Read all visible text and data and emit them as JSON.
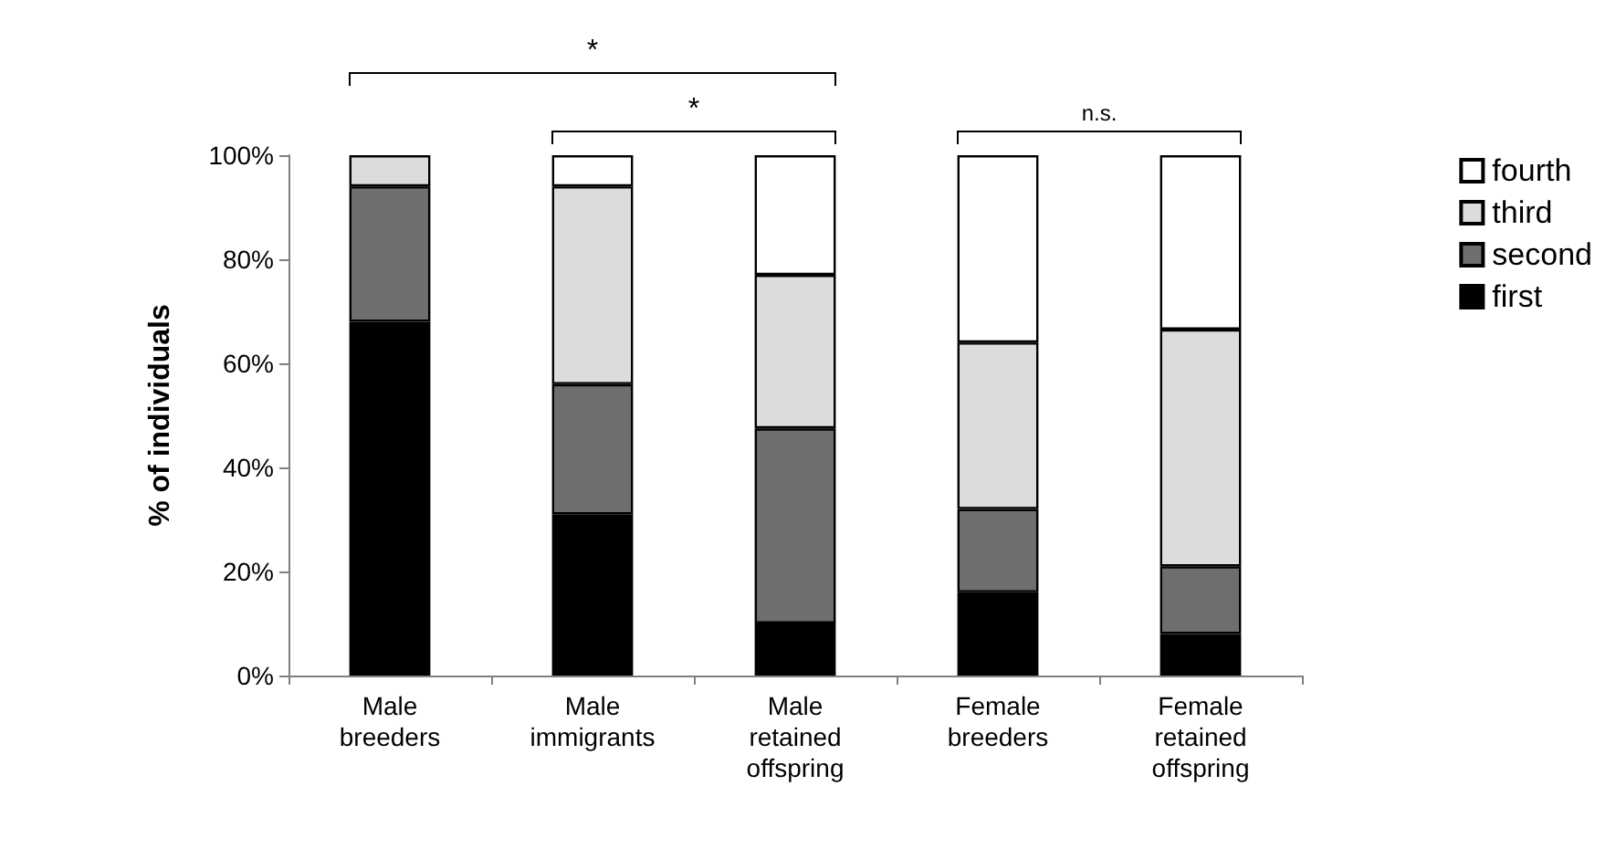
{
  "chart_data": {
    "type": "bar",
    "stacked": true,
    "ylabel": "% of individuals",
    "categories": [
      "Male\nbreeders",
      "Male\nimmigrants",
      "Male\nretained\noffspring",
      "Female\nbreeders",
      "Female\nretained\noffspring"
    ],
    "series": [
      {
        "name": "first",
        "color": "#000000",
        "values": [
          68,
          31,
          10,
          16,
          8
        ]
      },
      {
        "name": "second",
        "color": "#6e6e6e",
        "values": [
          26,
          25,
          37.5,
          16,
          13
        ]
      },
      {
        "name": "third",
        "color": "#dcdcdc",
        "values": [
          6,
          38,
          29.5,
          32,
          45.5
        ]
      },
      {
        "name": "fourth",
        "color": "#ffffff",
        "values": [
          null,
          6,
          23,
          36,
          33.5
        ]
      }
    ],
    "ylim": [
      0,
      100
    ],
    "yticks": [
      {
        "value": 0,
        "label": "0%"
      },
      {
        "value": 20,
        "label": "20%"
      },
      {
        "value": 40,
        "label": "40%"
      },
      {
        "value": 60,
        "label": "60%"
      },
      {
        "value": 80,
        "label": "80%"
      },
      {
        "value": 100,
        "label": "100%"
      }
    ],
    "grid": false,
    "legend": "right",
    "annotations": [
      "*",
      "*",
      "n.s."
    ]
  }
}
